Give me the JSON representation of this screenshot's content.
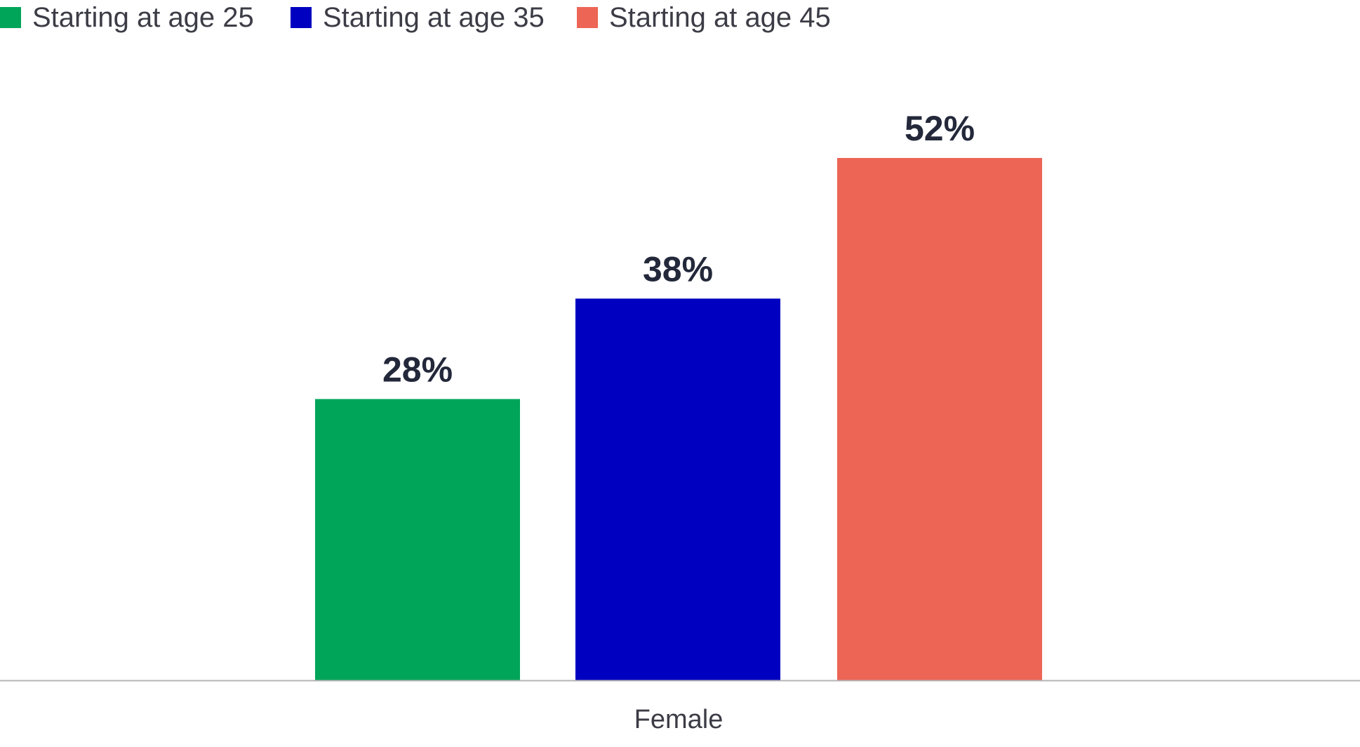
{
  "chart_data": {
    "type": "bar",
    "categories": [
      "Female"
    ],
    "series": [
      {
        "name": "Starting at age 25",
        "values": [
          28
        ],
        "color": "#00a55a"
      },
      {
        "name": "Starting at age 35",
        "values": [
          38
        ],
        "color": "#0000c0"
      },
      {
        "name": "Starting at age 45",
        "values": [
          52
        ],
        "color": "#ec6555"
      }
    ],
    "value_labels": [
      "28%",
      "38%",
      "52%"
    ],
    "value_suffix": "%",
    "title": "",
    "xlabel": "",
    "ylabel": "",
    "ylim": [
      0,
      52
    ],
    "grid": false,
    "legend_position": "top-left",
    "axis_color": "#b4b4b4"
  }
}
